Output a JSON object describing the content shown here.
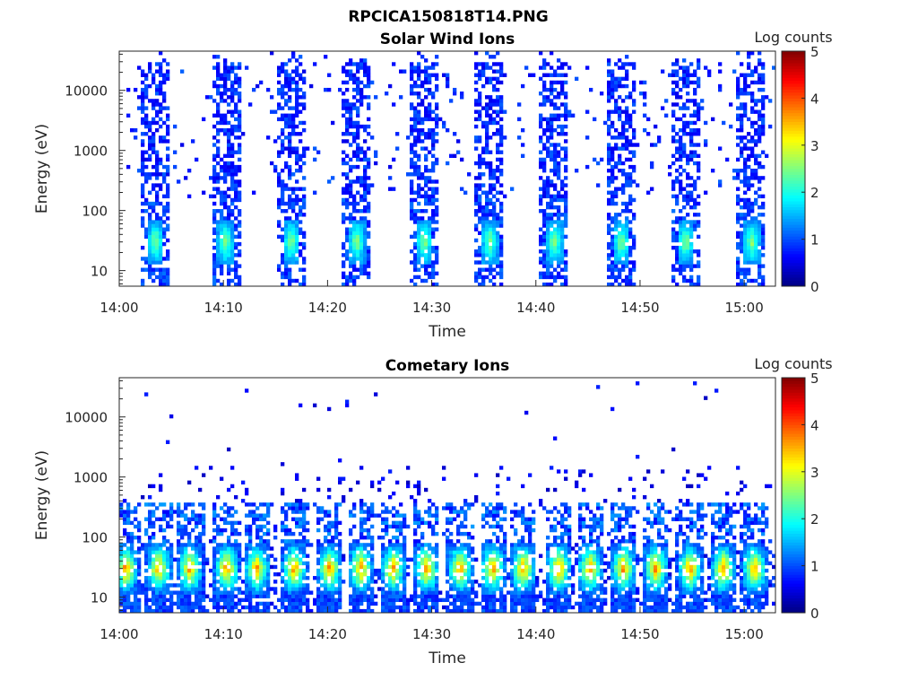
{
  "figure": {
    "filename": "RPCICA150818T14.PNG"
  },
  "chart_data": [
    {
      "type": "heatmap",
      "title": "Solar Wind Ions",
      "xlabel": "Time",
      "ylabel": "Energy (eV)",
      "x_tick_labels": [
        "14:00",
        "14:10",
        "14:20",
        "14:30",
        "14:40",
        "14:50",
        "15:00"
      ],
      "x_tick_minutes": [
        0,
        10,
        20,
        30,
        40,
        50,
        60
      ],
      "xlim_minutes": [
        0,
        63
      ],
      "y_scale": "log",
      "ylim": [
        5.5,
        45000
      ],
      "y_tick_labels": [
        "10",
        "100",
        "1000",
        "10000"
      ],
      "y_tick_values": [
        10,
        100,
        1000,
        10000
      ],
      "colorbar": {
        "label": "Log counts",
        "range": [
          0,
          5
        ],
        "ticks": [
          "0",
          "1",
          "2",
          "3",
          "4",
          "5"
        ],
        "colormap": "jet"
      },
      "bursts_minutes": [
        3.5,
        10.2,
        16.5,
        22.8,
        29.3,
        35.6,
        41.8,
        48.2,
        54.4,
        60.7
      ],
      "noise_floor_eV": 170,
      "peak_energy_eV": 30,
      "peak_log_counts": 2.6
    },
    {
      "type": "heatmap",
      "title": "Cometary Ions",
      "xlabel": "Time",
      "ylabel": "Energy (eV)",
      "x_tick_labels": [
        "14:00",
        "14:10",
        "14:20",
        "14:30",
        "14:40",
        "14:50",
        "15:00"
      ],
      "x_tick_minutes": [
        0,
        10,
        20,
        30,
        40,
        50,
        60
      ],
      "xlim_minutes": [
        0,
        63
      ],
      "y_scale": "log",
      "ylim": [
        5.5,
        45000
      ],
      "y_tick_labels": [
        "10",
        "100",
        "1000",
        "10000"
      ],
      "y_tick_values": [
        10,
        100,
        1000,
        10000
      ],
      "colorbar": {
        "label": "Log counts",
        "range": [
          0,
          5
        ],
        "ticks": [
          "0",
          "1",
          "2",
          "3",
          "4",
          "5"
        ],
        "colormap": "jet"
      },
      "bursts_minutes": [
        0.6,
        3.8,
        6.8,
        10.3,
        13.2,
        16.8,
        20.2,
        23.2,
        26.3,
        29.5,
        32.7,
        35.9,
        38.8,
        42.2,
        45.2,
        48.4,
        51.5,
        54.8,
        58.0,
        61.0
      ],
      "peak_energy_eV": 30,
      "peak_log_counts": 3.6
    }
  ]
}
